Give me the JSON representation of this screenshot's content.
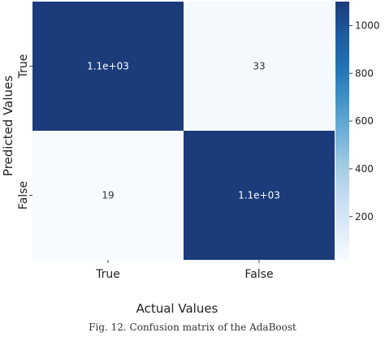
{
  "chart_data": {
    "type": "heatmap",
    "title": "",
    "xlabel": "Actual Values",
    "ylabel": "Predicted Values",
    "x_categories": [
      "True",
      "False"
    ],
    "y_categories": [
      "True",
      "False"
    ],
    "values": [
      [
        1100,
        33
      ],
      [
        19,
        1100
      ]
    ],
    "cell_labels": [
      [
        "1.1e+03",
        "33"
      ],
      [
        "19",
        "1.1e+03"
      ]
    ],
    "colormap": "Blues",
    "colorbar": {
      "range": [
        19,
        1100
      ],
      "ticks": [
        200,
        400,
        600,
        800,
        1000
      ],
      "tick_labels": [
        "200",
        "400",
        "600",
        "800",
        "1000"
      ]
    },
    "colors": {
      "high": "#1b3b7a",
      "low": "#f7fbff",
      "text_on_dark": "#ffffff",
      "text_on_light": "#333333"
    }
  },
  "caption": "Fig. 12. Confusion matrix of the AdaBoost"
}
